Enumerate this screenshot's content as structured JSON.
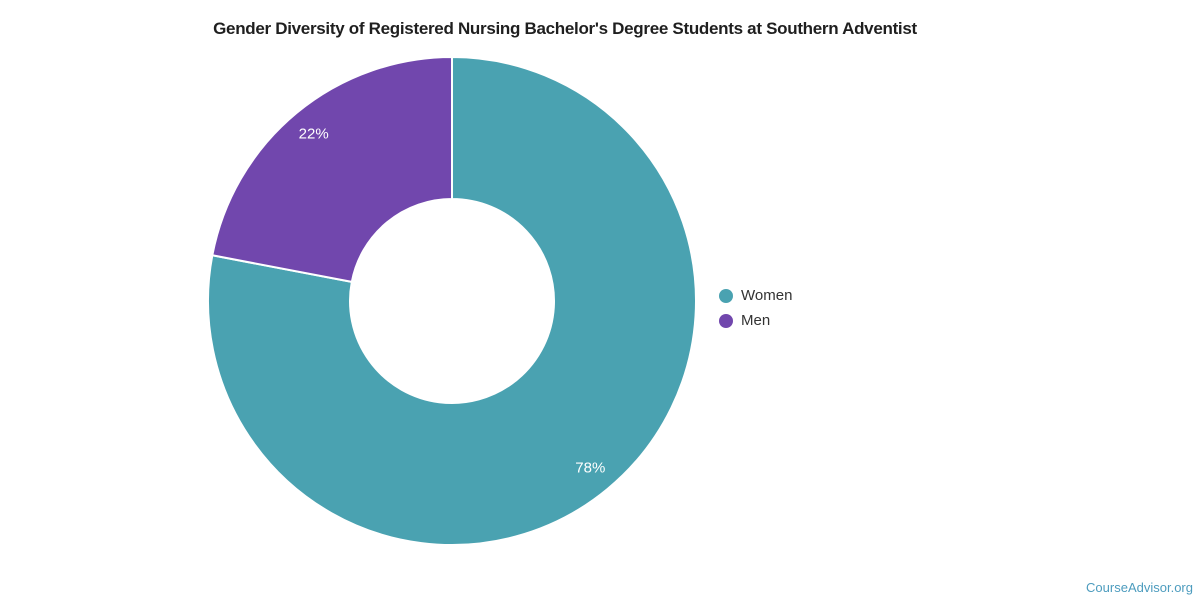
{
  "title": "Gender Diversity of Registered Nursing Bachelor's Degree Students at Southern Adventist",
  "watermark": "CourseAdvisor.org",
  "colors": {
    "women_teal": "#4AA2B1",
    "men_purple": "#7147AD",
    "title_text": "#1F1F1F",
    "legend_text": "#333333",
    "watermark_text": "#4D9CBE",
    "label_text": "#FFFFFF",
    "slice_border": "#FFFFFF"
  },
  "legend": {
    "position": "right",
    "items": [
      {
        "label": "Women",
        "color": "#4AA2B1"
      },
      {
        "label": "Men",
        "color": "#7147AD"
      }
    ]
  },
  "chart_data": {
    "type": "pie",
    "subtype": "donut",
    "title": "Gender Diversity of Registered Nursing Bachelor's Degree Students at Southern Adventist",
    "categories": [
      "Women",
      "Men"
    ],
    "values": [
      78,
      22
    ],
    "unit": "%",
    "labels": [
      "78%",
      "22%"
    ],
    "colors": [
      "#4AA2B1",
      "#7147AD"
    ],
    "start_angle_deg": 0,
    "direction": "clockwise",
    "inner_radius_ratio": 0.42,
    "legend_position": "right",
    "grid": false
  }
}
